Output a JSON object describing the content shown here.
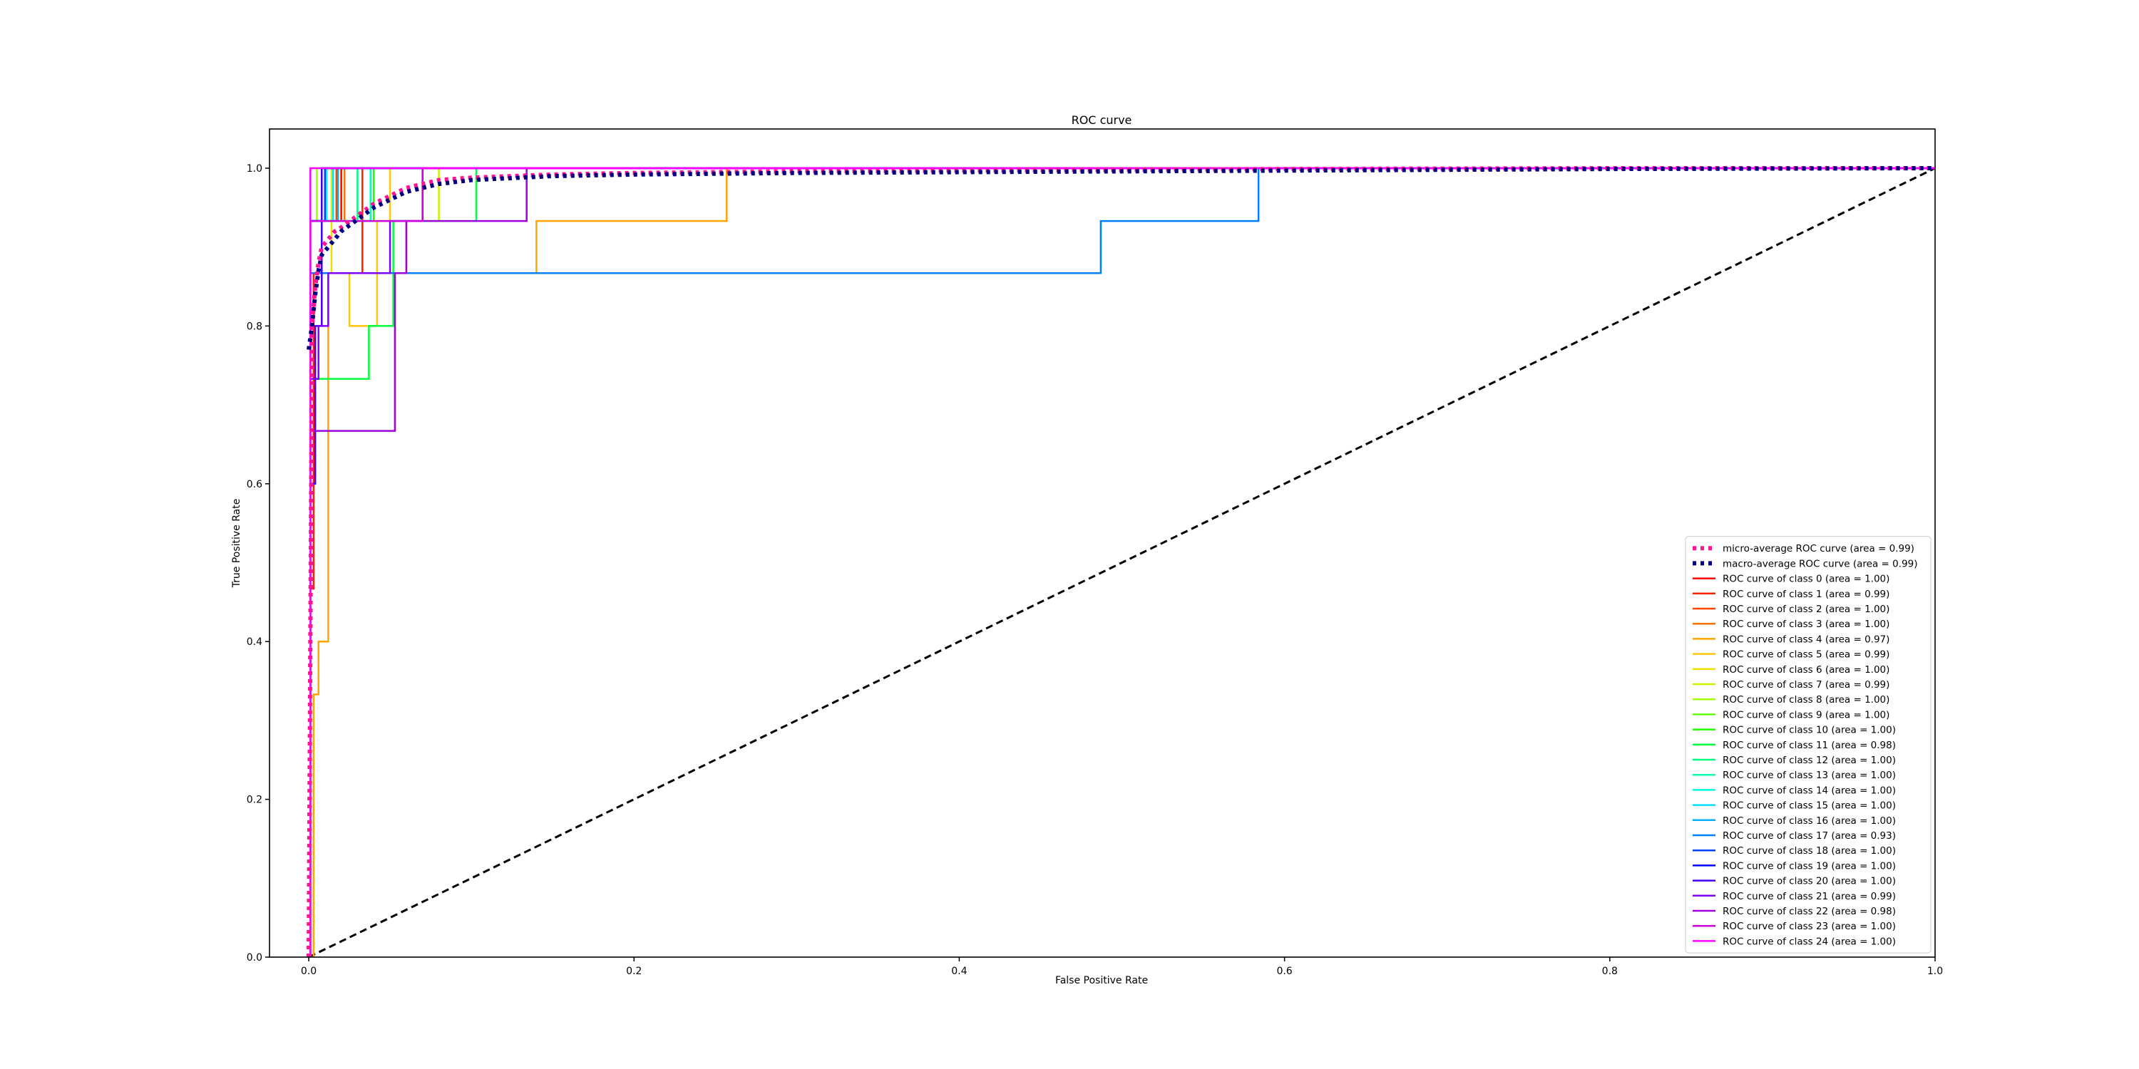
{
  "chart_data": {
    "type": "line",
    "title": "ROC curve",
    "xlabel": "False Positive Rate",
    "ylabel": "True Positive Rate",
    "xlim": [
      -0.025,
      1.0
    ],
    "ylim": [
      0.0,
      1.05
    ],
    "x_ticks": [
      "0.0",
      "0.2",
      "0.4",
      "0.6",
      "0.8",
      "1.0"
    ],
    "y_ticks": [
      "0.0",
      "0.2",
      "0.4",
      "0.6",
      "0.8",
      "1.0"
    ],
    "grid": false,
    "legend_position": "lower-right",
    "chance_line": {
      "style": "dashed",
      "color": "#000000",
      "x": [
        0,
        1
      ],
      "y": [
        0,
        1
      ]
    },
    "series": [
      {
        "name": "micro-average ROC curve (area = 0.99)",
        "color": "#ff1493",
        "style": "dotted",
        "x": [
          0,
          0.002,
          0.004,
          0.006,
          0.008,
          0.012,
          0.016,
          0.02,
          0.03,
          0.04,
          0.05,
          0.06,
          0.08,
          0.1,
          0.15,
          0.2,
          0.3,
          0.4,
          0.5,
          0.6,
          0.8,
          1.0
        ],
        "y": [
          0,
          0.8,
          0.85,
          0.88,
          0.9,
          0.91,
          0.92,
          0.925,
          0.94,
          0.955,
          0.965,
          0.975,
          0.985,
          0.988,
          0.992,
          0.994,
          0.996,
          0.997,
          0.998,
          0.999,
          1.0,
          1.0
        ]
      },
      {
        "name": "macro-average ROC curve (area = 0.99)",
        "color": "#000080",
        "style": "dotted",
        "x": [
          0,
          0.002,
          0.004,
          0.006,
          0.008,
          0.012,
          0.016,
          0.02,
          0.03,
          0.04,
          0.05,
          0.06,
          0.08,
          0.1,
          0.15,
          0.2,
          0.3,
          0.4,
          0.5,
          0.6,
          0.8,
          1.0
        ],
        "y": [
          0.77,
          0.8,
          0.84,
          0.87,
          0.89,
          0.9,
          0.91,
          0.92,
          0.935,
          0.95,
          0.96,
          0.97,
          0.98,
          0.985,
          0.99,
          0.992,
          0.994,
          0.995,
          0.996,
          0.997,
          0.999,
          1.0
        ]
      },
      {
        "name": "ROC curve of class 0 (area = 1.00)",
        "color": "#ff0000",
        "x": [
          0,
          0.001,
          0.001,
          0.02,
          0.02,
          1
        ],
        "y": [
          0,
          0,
          0.933,
          0.933,
          1,
          1
        ]
      },
      {
        "name": "ROC curve of class 1 (area = 0.99)",
        "color": "#ff2000",
        "x": [
          0,
          0.001,
          0.001,
          0.003,
          0.003,
          0.033,
          0.033,
          1
        ],
        "y": [
          0,
          0,
          0.467,
          0.467,
          0.867,
          0.867,
          1,
          1
        ]
      },
      {
        "name": "ROC curve of class 2 (area = 1.00)",
        "color": "#ff4500",
        "x": [
          0,
          0.001,
          0.001,
          0.017,
          0.017,
          1
        ],
        "y": [
          0,
          0,
          0.933,
          0.933,
          1,
          1
        ]
      },
      {
        "name": "ROC curve of class 3 (area = 1.00)",
        "color": "#ff7000",
        "x": [
          0,
          0.001,
          0.001,
          0.022,
          0.022,
          1
        ],
        "y": [
          0,
          0,
          0.933,
          0.933,
          1,
          1
        ]
      },
      {
        "name": "ROC curve of class 4 (area = 0.97)",
        "color": "#ffa500",
        "x": [
          0,
          0.003,
          0.003,
          0.006,
          0.006,
          0.012,
          0.012,
          0.14,
          0.14,
          0.257,
          0.257,
          1
        ],
        "y": [
          0,
          0,
          0.333,
          0.333,
          0.4,
          0.4,
          0.867,
          0.867,
          0.933,
          0.933,
          1,
          1
        ]
      },
      {
        "name": "ROC curve of class 5 (area = 0.99)",
        "color": "#ffc800",
        "x": [
          0,
          0.001,
          0.001,
          0.025,
          0.025,
          0.042,
          0.042,
          0.05,
          0.05,
          1
        ],
        "y": [
          0,
          0,
          0.867,
          0.867,
          0.8,
          0.8,
          0.933,
          0.933,
          1,
          1
        ]
      },
      {
        "name": "ROC curve of class 6 (area = 1.00)",
        "color": "#f0e000",
        "x": [
          0,
          0.001,
          0.001,
          0.014,
          0.014,
          1
        ],
        "y": [
          0,
          0,
          0.867,
          0.867,
          1,
          1
        ]
      },
      {
        "name": "ROC curve of class 7 (area = 0.99)",
        "color": "#d0f000",
        "x": [
          0,
          0.001,
          0.001,
          0.08,
          0.08,
          1
        ],
        "y": [
          0,
          0,
          0.933,
          0.933,
          1,
          1
        ]
      },
      {
        "name": "ROC curve of class 8 (area = 1.00)",
        "color": "#a0ff00",
        "x": [
          0,
          0.001,
          0.001,
          0.005,
          0.005,
          1
        ],
        "y": [
          0,
          0,
          0.933,
          0.933,
          1,
          1
        ]
      },
      {
        "name": "ROC curve of class 9 (area = 1.00)",
        "color": "#60ff00",
        "x": [
          0,
          0.001,
          0.001,
          0.008,
          0.008,
          1
        ],
        "y": [
          0,
          0,
          0.933,
          0.933,
          1,
          1
        ]
      },
      {
        "name": "ROC curve of class 10 (area = 1.00)",
        "color": "#20ff00",
        "x": [
          0,
          0.001,
          0.001,
          0.04,
          0.04,
          1
        ],
        "y": [
          0,
          0,
          0.933,
          0.933,
          1,
          1
        ]
      },
      {
        "name": "ROC curve of class 11 (area = 0.98)",
        "color": "#00ff40",
        "x": [
          0,
          0.001,
          0.001,
          0.037,
          0.037,
          0.052,
          0.052,
          0.103,
          0.103,
          1
        ],
        "y": [
          0,
          0,
          0.733,
          0.733,
          0.8,
          0.8,
          0.933,
          0.933,
          1,
          1
        ]
      },
      {
        "name": "ROC curve of class 12 (area = 1.00)",
        "color": "#00ff80",
        "x": [
          0,
          0.001,
          0.001,
          0.03,
          0.03,
          1
        ],
        "y": [
          0,
          0,
          0.933,
          0.933,
          1,
          1
        ]
      },
      {
        "name": "ROC curve of class 13 (area = 1.00)",
        "color": "#00ffb0",
        "x": [
          0,
          0.001,
          0.001,
          0.038,
          0.038,
          1
        ],
        "y": [
          0,
          0,
          0.933,
          0.933,
          1,
          1
        ]
      },
      {
        "name": "ROC curve of class 14 (area = 1.00)",
        "color": "#00ffe0",
        "x": [
          0,
          0.001,
          0.001,
          0.011,
          0.011,
          1
        ],
        "y": [
          0,
          0,
          0.933,
          0.933,
          1,
          1
        ]
      },
      {
        "name": "ROC curve of class 15 (area = 1.00)",
        "color": "#00e0ff",
        "x": [
          0,
          0.001,
          0.001,
          0.015,
          0.015,
          1
        ],
        "y": [
          0,
          0,
          0.933,
          0.933,
          1,
          1
        ]
      },
      {
        "name": "ROC curve of class 16 (area = 1.00)",
        "color": "#00b0ff",
        "x": [
          0,
          0.001,
          0.001,
          0.018,
          0.018,
          1
        ],
        "y": [
          0,
          0,
          0.933,
          0.933,
          1,
          1
        ]
      },
      {
        "name": "ROC curve of class 17 (area = 0.93)",
        "color": "#0080ff",
        "x": [
          0,
          0.001,
          0.001,
          0.487,
          0.487,
          0.584,
          0.584,
          1
        ],
        "y": [
          0,
          0,
          0.867,
          0.867,
          0.933,
          0.933,
          1,
          1
        ]
      },
      {
        "name": "ROC curve of class 18 (area = 1.00)",
        "color": "#0040ff",
        "x": [
          0,
          0.001,
          0.001,
          0.01,
          0.01,
          1
        ],
        "y": [
          0,
          0,
          0.933,
          0.933,
          1,
          1
        ]
      },
      {
        "name": "ROC curve of class 19 (area = 1.00)",
        "color": "#0000ff",
        "x": [
          0,
          0.001,
          0.001,
          0.008,
          0.008,
          1
        ],
        "y": [
          0,
          0,
          0.933,
          0.933,
          1,
          1
        ]
      },
      {
        "name": "ROC curve of class 20 (area = 1.00)",
        "color": "#4000ff",
        "x": [
          0,
          0.001,
          0.001,
          0.004,
          0.004,
          0.008,
          0.008,
          1
        ],
        "y": [
          0,
          0,
          0.6,
          0.6,
          0.8,
          0.8,
          1,
          1
        ]
      },
      {
        "name": "ROC curve of class 21 (area = 0.99)",
        "color": "#8000ff",
        "x": [
          0,
          0.001,
          0.001,
          0.006,
          0.006,
          0.012,
          0.012,
          0.05,
          0.05,
          0.07,
          0.07,
          1
        ],
        "y": [
          0,
          0,
          0.733,
          0.733,
          0.8,
          0.8,
          0.867,
          0.867,
          0.933,
          0.933,
          1,
          1
        ]
      },
      {
        "name": "ROC curve of class 22 (area = 0.98)",
        "color": "#a000e0",
        "x": [
          0,
          0.001,
          0.001,
          0.053,
          0.053,
          0.06,
          0.06,
          0.134,
          0.134,
          1
        ],
        "y": [
          0,
          0,
          0.667,
          0.667,
          0.867,
          0.867,
          0.933,
          0.933,
          1,
          1
        ]
      },
      {
        "name": "ROC curve of class 23 (area = 1.00)",
        "color": "#d000e0",
        "x": [
          0,
          0.001,
          0.001,
          0.07,
          0.07,
          1
        ],
        "y": [
          0,
          0,
          0.933,
          0.933,
          1,
          1
        ]
      },
      {
        "name": "ROC curve of class 24 (area = 1.00)",
        "color": "#ff00ff",
        "x": [
          0,
          0.001,
          0.001,
          1
        ],
        "y": [
          0,
          0,
          1,
          1
        ]
      }
    ]
  }
}
